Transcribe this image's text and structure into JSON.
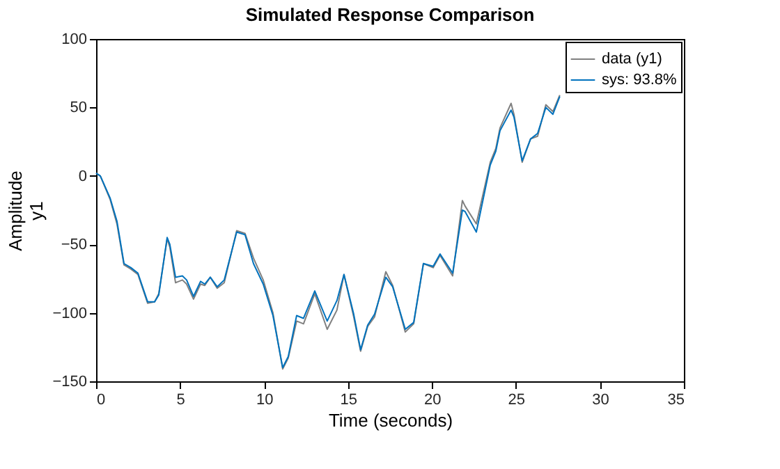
{
  "chart_data": {
    "type": "line",
    "title": "Simulated Response Comparison",
    "xlabel": "Time (seconds)",
    "ylabel": "Amplitude",
    "annotations": [
      "y1"
    ],
    "xlim": [
      0,
      35
    ],
    "xticks": [
      0,
      5,
      10,
      15,
      20,
      25,
      30,
      35
    ],
    "ylim": [
      -150,
      100
    ],
    "yticks": [
      -150,
      -100,
      -50,
      0,
      50,
      100
    ],
    "grid": false,
    "legend": "top right",
    "line_style": "solid",
    "marker": "none",
    "series": [
      {
        "name": "data (y1)",
        "color": "#808080",
        "x": [
          0,
          0.25,
          0.83,
          1.24,
          1.66,
          2.07,
          2.49,
          3.07,
          3.48,
          3.73,
          4.23,
          4.39,
          4.73,
          5.14,
          5.39,
          5.8,
          6.22,
          6.47,
          6.8,
          7.21,
          7.63,
          8.37,
          8.87,
          9.37,
          9.95,
          10.53,
          11.11,
          11.44,
          11.94,
          12.35,
          13.02,
          13.76,
          14.34,
          14.76,
          15.34,
          15.75,
          16.17,
          16.58,
          17.25,
          17.66,
          18.41,
          18.91,
          19.49,
          20.07,
          20.48,
          21.23,
          21.81,
          21.97,
          22.64,
          23.47,
          23.8,
          24.05,
          24.71,
          24.88,
          25.37,
          25.87,
          26.29,
          26.78,
          27.2,
          27.61
        ],
        "values": [
          2,
          0,
          -17,
          -35,
          -65,
          -68,
          -72,
          -93,
          -92,
          -86,
          -46,
          -52,
          -78,
          -76,
          -79,
          -90,
          -79,
          -80,
          -74,
          -82,
          -78,
          -40,
          -42,
          -60,
          -76,
          -100,
          -141,
          -133,
          -106,
          -108,
          -86,
          -112,
          -98,
          -72,
          -103,
          -128,
          -110,
          -103,
          -70,
          -80,
          -114,
          -108,
          -64,
          -67,
          -58,
          -73,
          -18,
          -22,
          -35,
          10,
          20,
          35,
          53,
          45,
          10,
          27,
          29,
          52,
          47,
          59
        ]
      },
      {
        "name": "sys: 93.8%",
        "color": "#0072bd",
        "x": [
          0,
          0.25,
          0.83,
          1.24,
          1.66,
          2.07,
          2.49,
          3.07,
          3.48,
          3.73,
          4.23,
          4.39,
          4.73,
          5.14,
          5.39,
          5.8,
          6.22,
          6.47,
          6.8,
          7.21,
          7.63,
          8.37,
          8.87,
          9.37,
          9.95,
          10.53,
          11.11,
          11.44,
          11.94,
          12.35,
          13.02,
          13.76,
          14.34,
          14.76,
          15.34,
          15.75,
          16.17,
          16.58,
          17.25,
          17.66,
          18.41,
          18.91,
          19.49,
          20.07,
          20.48,
          21.23,
          21.81,
          21.97,
          22.64,
          23.47,
          23.8,
          24.05,
          24.71,
          24.88,
          25.37,
          25.87,
          26.29,
          26.78,
          27.2,
          27.61
        ],
        "values": [
          2,
          0,
          -16,
          -33,
          -64,
          -67,
          -71,
          -92,
          -92,
          -87,
          -45,
          -50,
          -74,
          -73,
          -76,
          -88,
          -77,
          -79,
          -74,
          -81,
          -76,
          -41,
          -43,
          -64,
          -79,
          -102,
          -140,
          -132,
          -102,
          -104,
          -84,
          -106,
          -91,
          -72,
          -101,
          -127,
          -109,
          -101,
          -74,
          -81,
          -112,
          -107,
          -64,
          -66,
          -57,
          -71,
          -25,
          -26,
          -41,
          8,
          18,
          33,
          48,
          43,
          11,
          27,
          31,
          50,
          45,
          58
        ]
      }
    ]
  }
}
